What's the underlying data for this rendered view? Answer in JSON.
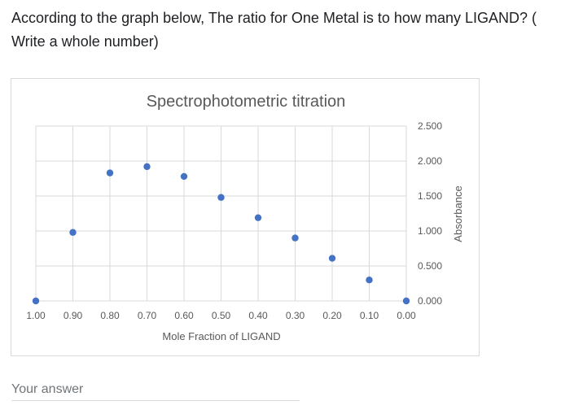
{
  "question": {
    "text": "According to the graph below, The ratio for One Metal is to how many LIGAND? (\nWrite a whole number)"
  },
  "answer": {
    "placeholder": "Your answer",
    "value": ""
  },
  "colors": {
    "marker": "#4472c4",
    "grid": "#d9d9d9",
    "tick_text": "#595959",
    "title_text": "#595959"
  },
  "chart_data": {
    "type": "scatter",
    "title": "Spectrophotometric titration",
    "xlabel": "Mole Fraction of LIGAND",
    "ylabel": "Absorbance",
    "xlim": [
      1.0,
      0.0
    ],
    "ylim": [
      0,
      2.5
    ],
    "x_reversed": true,
    "y_axis_side": "right",
    "grid": true,
    "x_ticks": [
      "1.00",
      "0.90",
      "0.80",
      "0.70",
      "0.60",
      "0.50",
      "0.40",
      "0.30",
      "0.20",
      "0.10",
      "0.00"
    ],
    "y_ticks": [
      "0.000",
      "0.500",
      "1.000",
      "1.500",
      "2.000",
      "2.500"
    ],
    "points": [
      {
        "x": 1.0,
        "y": 0.0
      },
      {
        "x": 0.9,
        "y": 0.98
      },
      {
        "x": 0.8,
        "y": 1.83
      },
      {
        "x": 0.7,
        "y": 1.92
      },
      {
        "x": 0.6,
        "y": 1.78
      },
      {
        "x": 0.5,
        "y": 1.48
      },
      {
        "x": 0.4,
        "y": 1.19
      },
      {
        "x": 0.3,
        "y": 0.9
      },
      {
        "x": 0.2,
        "y": 0.61
      },
      {
        "x": 0.1,
        "y": 0.3
      },
      {
        "x": 0.0,
        "y": 0.0
      }
    ]
  }
}
